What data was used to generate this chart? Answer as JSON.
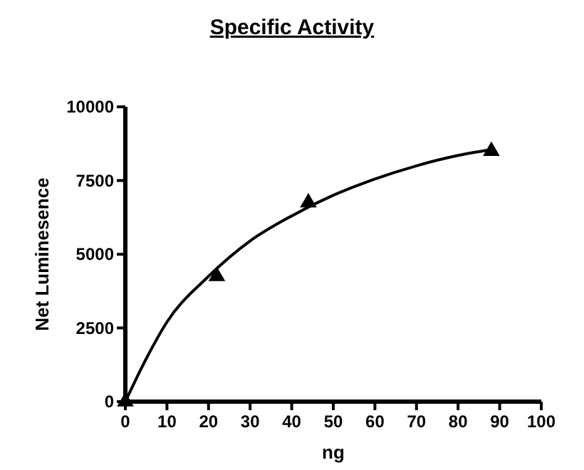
{
  "chart_data": {
    "type": "scatter",
    "title": "Specific Activity",
    "xlabel": "ng",
    "ylabel": "Net Luminesence",
    "xlim": [
      0,
      100
    ],
    "xticks": [
      0,
      10,
      20,
      30,
      40,
      50,
      60,
      70,
      80,
      90,
      100
    ],
    "ylim": [
      0,
      10000
    ],
    "yticks": [
      0,
      2500,
      5000,
      7500,
      10000
    ],
    "grid": false,
    "marker": "triangle",
    "series": [
      {
        "color": "#000000",
        "x": [
          0,
          22,
          44,
          88
        ],
        "values": [
          0,
          4250,
          6750,
          8500
        ]
      },
      {
        "type": "line",
        "color": "#000000",
        "marker": "none",
        "x": [
          0,
          5,
          10,
          20,
          30,
          40,
          50,
          60,
          70,
          80,
          88
        ],
        "values": [
          0,
          1450,
          2700,
          4250,
          5450,
          6300,
          7000,
          7550,
          8000,
          8350,
          8550
        ]
      }
    ]
  }
}
